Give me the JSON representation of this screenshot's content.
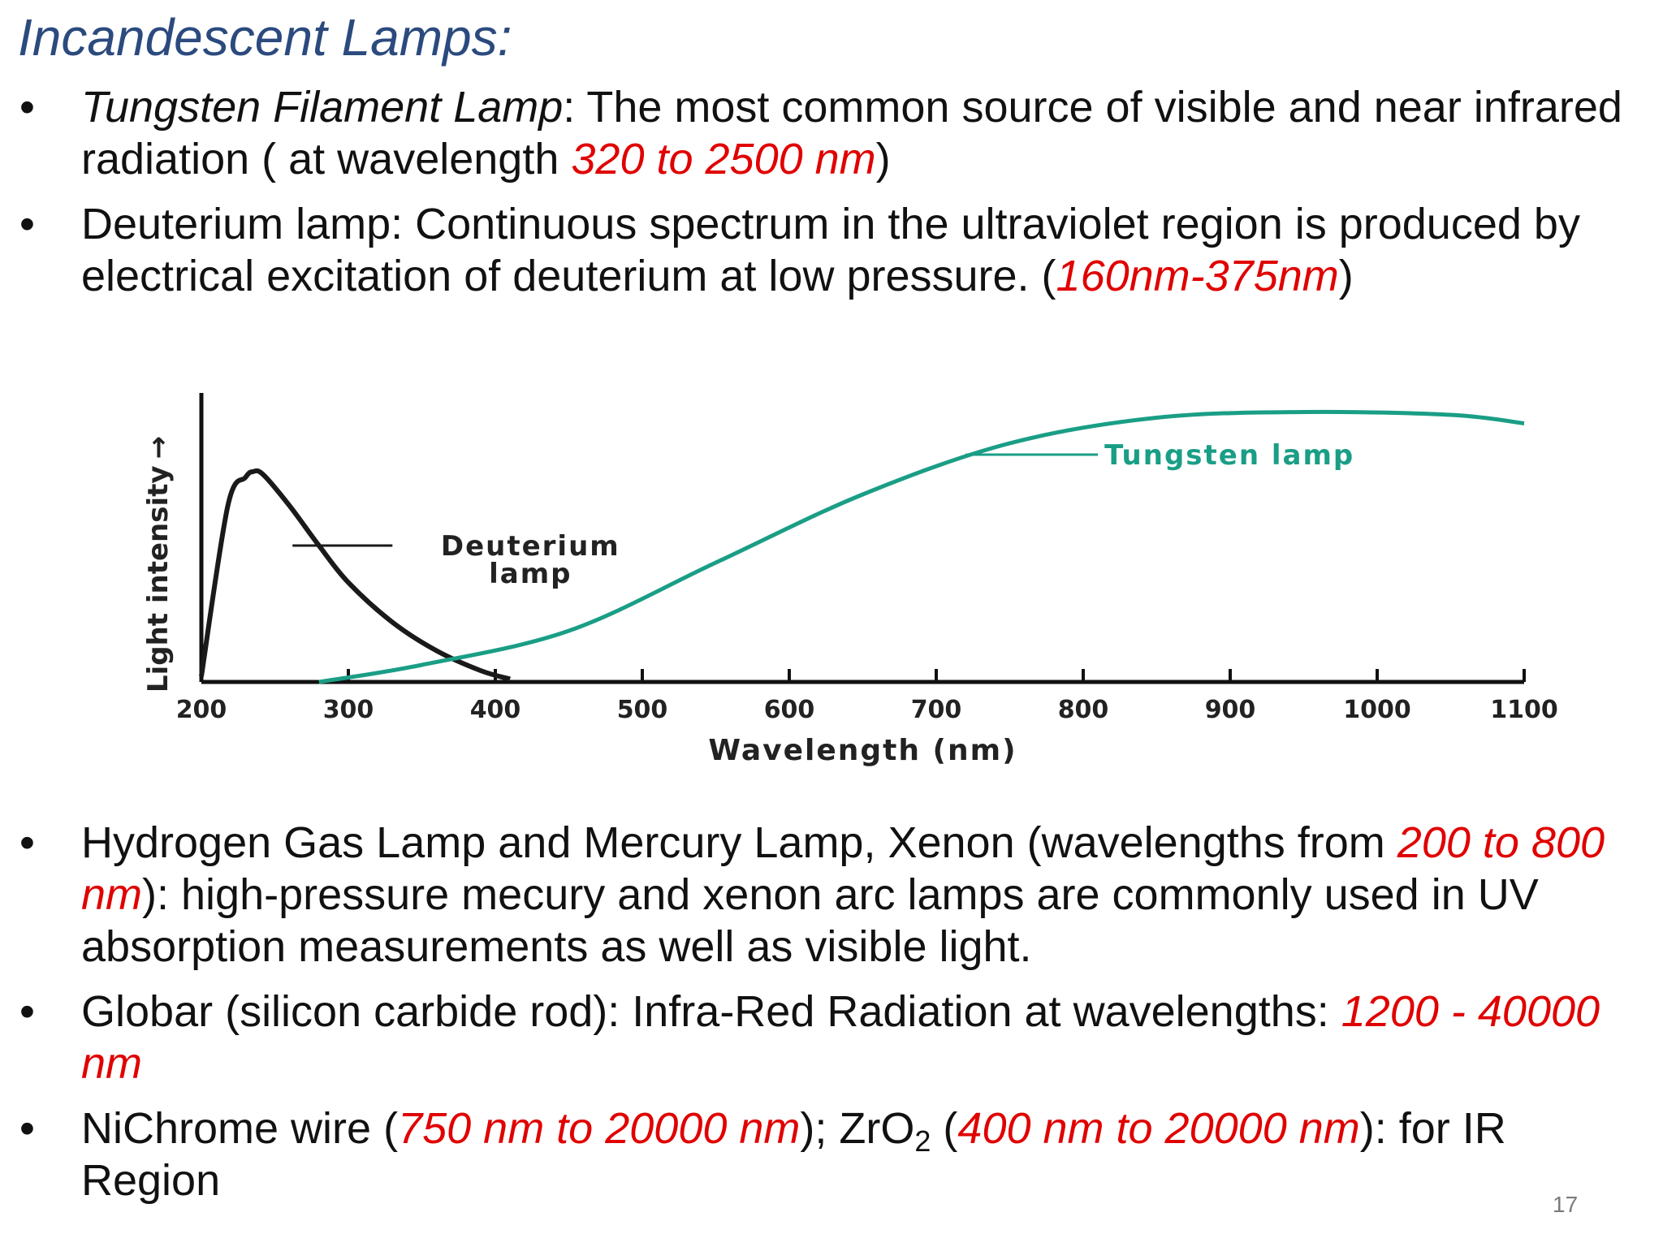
{
  "slide": {
    "title": "Incandescent Lamps:",
    "number": "17"
  },
  "bullets_top": [
    {
      "parts": [
        {
          "text": "Tungsten Filament Lamp",
          "style": "italic"
        },
        {
          "text": ": The most common source of visible and near infrared radiation ( at wavelength ",
          "style": "plain"
        },
        {
          "text": "320 to 2500 nm",
          "style": "highlight"
        },
        {
          "text": ")",
          "style": "plain"
        }
      ]
    },
    {
      "parts": [
        {
          "text": "Deuterium lamp: Continuous spectrum in the ultraviolet region is produced by electrical excitation of deuterium at low pressure. (",
          "style": "plain"
        },
        {
          "text": "160nm-375nm",
          "style": "highlight"
        },
        {
          "text": ")",
          "style": "plain"
        }
      ]
    }
  ],
  "bullets_bottom": [
    {
      "parts": [
        {
          "text": "Hydrogen Gas Lamp and Mercury Lamp, Xenon (wavelengths from ",
          "style": "plain"
        },
        {
          "text": "200 to 800 nm",
          "style": "highlight"
        },
        {
          "text": "):  high-pressure mecury and xenon arc lamps are commonly used in UV absorption measurements as well as visible light.",
          "style": "plain"
        }
      ]
    },
    {
      "parts": [
        {
          "text": "Globar (silicon carbide rod): Infra-Red Radiation at wavelengths: ",
          "style": "plain"
        },
        {
          "text": "1200 - 40000 nm",
          "style": "highlight"
        }
      ]
    },
    {
      "parts": [
        {
          "text": "NiChrome wire (",
          "style": "plain"
        },
        {
          "text": "750 nm to 20000 nm",
          "style": "highlight"
        },
        {
          "text": ");  ZrO",
          "style": "plain"
        },
        {
          "text": "2",
          "style": "sub"
        },
        {
          "text": " (",
          "style": "plain"
        },
        {
          "text": "400 nm to 20000 nm",
          "style": "highlight"
        },
        {
          "text": "): for IR Region",
          "style": "plain"
        }
      ]
    }
  ],
  "chart_data": {
    "type": "line",
    "xlabel": "Wavelength (nm)",
    "ylabel": "Light intensity",
    "ylabel_arrow": "→",
    "xlim": [
      200,
      1100
    ],
    "ylim": [
      0,
      1
    ],
    "x_ticks": [
      200,
      300,
      400,
      500,
      600,
      700,
      800,
      900,
      1000,
      1100
    ],
    "grid": false,
    "legend": "inline labels",
    "series": [
      {
        "name": "Deuterium\nlamp",
        "label_lines": [
          "Deuterium",
          "lamp"
        ],
        "color": "#1a1a1a",
        "x": [
          200,
          218,
          230,
          235,
          242,
          260,
          280,
          300,
          330,
          360,
          390,
          410
        ],
        "y": [
          0.02,
          0.62,
          0.72,
          0.74,
          0.73,
          0.62,
          0.48,
          0.35,
          0.21,
          0.11,
          0.04,
          0.01
        ]
      },
      {
        "name": "Tungsten lamp",
        "label_lines": [
          "Tungsten lamp"
        ],
        "color": "#1a9e86",
        "x": [
          280,
          350,
          450,
          550,
          650,
          750,
          850,
          950,
          1050,
          1100
        ],
        "y": [
          0.0,
          0.06,
          0.18,
          0.42,
          0.66,
          0.84,
          0.93,
          0.95,
          0.94,
          0.91
        ]
      }
    ]
  }
}
